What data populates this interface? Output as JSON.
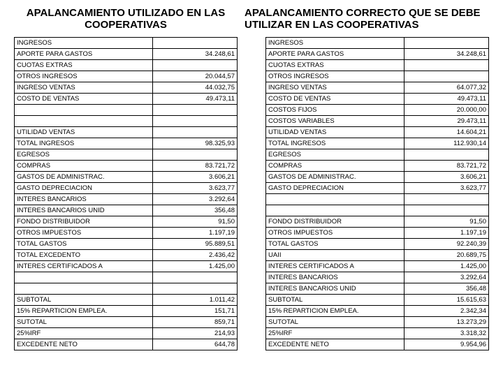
{
  "titles": {
    "left": "APALANCAMIENTO UTILIZADO EN LAS COOPERATIVAS",
    "right": "APALANCAMIENTO CORRECTO QUE SE  DEBE UTILIZAR EN LAS COOPERATIVAS"
  },
  "styling": {
    "background_color": "#ffffff",
    "text_color": "#000000",
    "border_color": "#000000",
    "title_fontsize": 15,
    "title_fontweight": "bold",
    "table_fontsize": 9.5,
    "font_family": "Arial, sans-serif",
    "label_align": "left",
    "value_align": "right",
    "label_col_width_pct": 62,
    "value_col_width_pct": 38
  },
  "left_table": {
    "columns": [
      "label",
      "value"
    ],
    "rows": [
      [
        "INGRESOS",
        ""
      ],
      [
        "APORTE PARA GASTOS",
        "34.248,61"
      ],
      [
        "CUOTAS EXTRAS",
        ""
      ],
      [
        "OTROS INGRESOS",
        "20.044,57"
      ],
      [
        "INGRESO VENTAS",
        "44.032,75"
      ],
      [
        "COSTO DE VENTAS",
        "49.473,11"
      ],
      [
        "",
        ""
      ],
      [
        "",
        ""
      ],
      [
        "UTILIDAD VENTAS",
        ""
      ],
      [
        "TOTAL INGRESOS",
        "98.325,93"
      ],
      [
        "EGRESOS",
        ""
      ],
      [
        "COMPRAS",
        "83.721,72"
      ],
      [
        "GASTOS DE ADMINISTRAC.",
        "3.606,21"
      ],
      [
        "GASTO DEPRECIACION",
        "3.623,77"
      ],
      [
        "INTERES BANCARIOS",
        "3.292,64"
      ],
      [
        "INTERES BANCARIOS UNID",
        "356,48"
      ],
      [
        "FONDO DISTRIBUIDOR",
        "91,50"
      ],
      [
        "OTROS IMPUESTOS",
        "1.197,19"
      ],
      [
        "TOTAL GASTOS",
        "95.889,51"
      ],
      [
        "TOTAL EXCEDENTO",
        "2.436,42"
      ],
      [
        "INTERES CERTIFICADOS A",
        "1.425,00"
      ],
      [
        "",
        ""
      ],
      [
        "",
        ""
      ],
      [
        "SUBTOTAL",
        "1.011,42"
      ],
      [
        "15% REPARTICION EMPLEA.",
        "151,71"
      ],
      [
        "SUTOTAL",
        "859,71"
      ],
      [
        "25%IRF",
        "214,93"
      ],
      [
        "EXCEDENTE NETO",
        "644,78"
      ]
    ]
  },
  "right_table": {
    "columns": [
      "label",
      "value"
    ],
    "rows": [
      [
        "INGRESOS",
        ""
      ],
      [
        "APORTE PARA GASTOS",
        "34.248,61"
      ],
      [
        "CUOTAS EXTRAS",
        ""
      ],
      [
        "OTROS INGRESOS",
        ""
      ],
      [
        "INGRESO VENTAS",
        "64.077,32"
      ],
      [
        "COSTO DE VENTAS",
        "49.473,11"
      ],
      [
        "COSTOS FIJOS",
        "20.000,00"
      ],
      [
        "COSTOS VARIABLES",
        "29.473,11"
      ],
      [
        "UTILIDAD VENTAS",
        "14.604,21"
      ],
      [
        "TOTAL INGRESOS",
        "112.930,14"
      ],
      [
        "EGRESOS",
        ""
      ],
      [
        "COMPRAS",
        "83.721,72"
      ],
      [
        "GASTOS DE ADMINISTRAC.",
        "3.606,21"
      ],
      [
        "GASTO DEPRECIACION",
        "3.623,77"
      ],
      [
        "",
        ""
      ],
      [
        "",
        ""
      ],
      [
        "FONDO DISTRIBUIDOR",
        "91,50"
      ],
      [
        "OTROS IMPUESTOS",
        "1.197,19"
      ],
      [
        "TOTAL GASTOS",
        "92.240,39"
      ],
      [
        "UAII",
        "20.689,75"
      ],
      [
        "INTERES CERTIFICADOS A",
        "1.425,00"
      ],
      [
        "INTERES BANCARIOS",
        "3.292,64"
      ],
      [
        "INTERES BANCARIOS UNID",
        "356,48"
      ],
      [
        "SUBTOTAL",
        "15.615,63"
      ],
      [
        "15% REPARTICION EMPLEA.",
        "2.342,34"
      ],
      [
        "SUTOTAL",
        "13.273,29"
      ],
      [
        "25%IRF",
        "3.318,32"
      ],
      [
        "EXCEDENTE NETO",
        "9.954,96"
      ]
    ]
  }
}
